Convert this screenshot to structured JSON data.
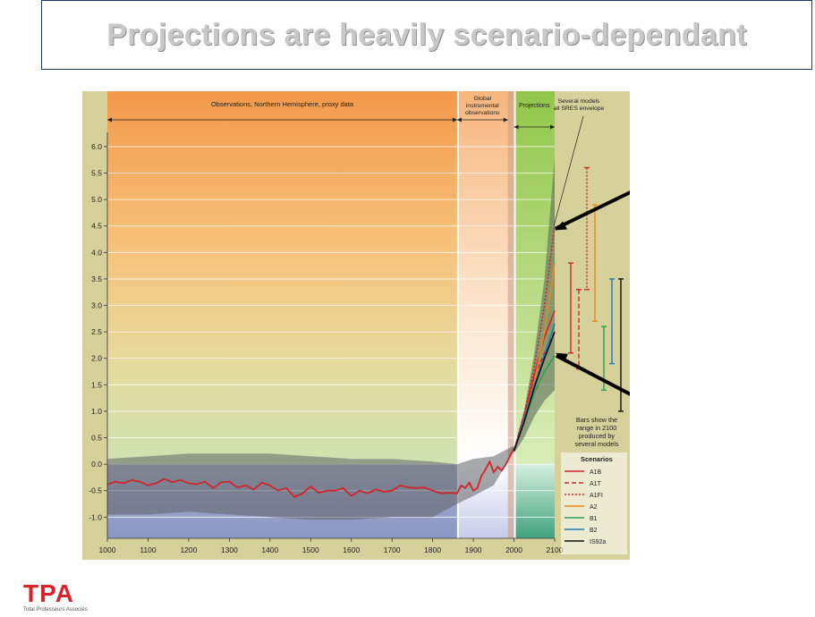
{
  "title": "Projections are heavily scenario-dependant",
  "logo": {
    "main": "TPA",
    "sub": "Total Professeurs Associés"
  },
  "chart_data": {
    "type": "line",
    "xlim": [
      1000,
      2100
    ],
    "ylim": [
      -1.0,
      6.0
    ],
    "x_ticks": [
      1000,
      1100,
      1200,
      1300,
      1400,
      1500,
      1600,
      1700,
      1800,
      1900,
      2000,
      2100
    ],
    "y_ticks": [
      -1.0,
      -0.5,
      0.0,
      0.5,
      1.0,
      1.5,
      2.0,
      2.5,
      3.0,
      3.5,
      4.0,
      4.5,
      5.0,
      5.5,
      6.0
    ],
    "periods": [
      {
        "label": "Observations, Northern Hemisphere, proxy data",
        "from": 1000,
        "to": 1860,
        "color": "#f39a4f"
      },
      {
        "label": "Global instrumental observations",
        "from": 1860,
        "to": 2000,
        "color": "#f8c9a0"
      },
      {
        "label": "Projections",
        "from": 2000,
        "to": 2100,
        "color": "#9ccc52"
      }
    ],
    "envelope_label": "Several models all SRES envelope",
    "bars_note": "Bars show the range in 2100 produced by several models",
    "legend_title": "Scenarios",
    "observations": {
      "x": [
        1000,
        1020,
        1040,
        1060,
        1080,
        1100,
        1120,
        1140,
        1160,
        1180,
        1200,
        1220,
        1240,
        1260,
        1280,
        1300,
        1320,
        1340,
        1360,
        1380,
        1400,
        1420,
        1440,
        1460,
        1480,
        1500,
        1520,
        1540,
        1560,
        1580,
        1600,
        1620,
        1640,
        1660,
        1680,
        1700,
        1720,
        1740,
        1760,
        1780,
        1800,
        1820,
        1840,
        1860,
        1870,
        1880,
        1890,
        1900,
        1910,
        1920,
        1930,
        1940,
        1950,
        1960,
        1970,
        1980,
        1990,
        2000
      ],
      "y": [
        -0.38,
        -0.33,
        -0.36,
        -0.3,
        -0.33,
        -0.4,
        -0.36,
        -0.28,
        -0.34,
        -0.3,
        -0.36,
        -0.38,
        -0.33,
        -0.45,
        -0.34,
        -0.33,
        -0.44,
        -0.4,
        -0.48,
        -0.35,
        -0.4,
        -0.5,
        -0.45,
        -0.62,
        -0.55,
        -0.42,
        -0.54,
        -0.5,
        -0.5,
        -0.45,
        -0.6,
        -0.5,
        -0.55,
        -0.48,
        -0.52,
        -0.5,
        -0.4,
        -0.44,
        -0.45,
        -0.44,
        -0.5,
        -0.55,
        -0.54,
        -0.55,
        -0.4,
        -0.45,
        -0.35,
        -0.5,
        -0.45,
        -0.22,
        -0.1,
        0.05,
        -0.15,
        -0.05,
        -0.12,
        0.0,
        0.15,
        0.3
      ]
    },
    "uncertainty": {
      "x": [
        1000,
        1100,
        1200,
        1300,
        1400,
        1500,
        1600,
        1700,
        1800,
        1860,
        1900,
        1950,
        2000
      ],
      "upper": [
        0.1,
        0.15,
        0.2,
        0.2,
        0.2,
        0.15,
        0.1,
        0.1,
        0.05,
        0.0,
        0.1,
        0.15,
        0.35
      ],
      "lower": [
        -0.95,
        -0.95,
        -0.9,
        -0.95,
        -1.0,
        -1.05,
        -1.05,
        -1.0,
        -1.0,
        -0.75,
        -0.6,
        -0.4,
        0.25
      ]
    },
    "projection_envelope": {
      "x": [
        2000,
        2025,
        2050,
        2075,
        2100
      ],
      "upper": [
        0.3,
        1.0,
        2.1,
        3.5,
        5.8
      ],
      "lower": [
        0.2,
        0.5,
        0.9,
        1.2,
        1.4
      ]
    },
    "scenarios": [
      {
        "name": "A1B",
        "color": "#d0242a",
        "dash": "solid",
        "x": [
          2000,
          2025,
          2050,
          2075,
          2100
        ],
        "y": [
          0.25,
          0.9,
          1.7,
          2.4,
          2.9
        ],
        "range": [
          2.1,
          3.8
        ]
      },
      {
        "name": "A1T",
        "color": "#d0242a",
        "dash": "dashed",
        "x": [
          2000,
          2025,
          2050,
          2075,
          2100
        ],
        "y": [
          0.25,
          0.95,
          1.65,
          2.1,
          2.5
        ],
        "range": [
          1.8,
          3.3
        ]
      },
      {
        "name": "A1FI",
        "color": "#d0242a",
        "dash": "dotted",
        "x": [
          2000,
          2025,
          2050,
          2075,
          2100
        ],
        "y": [
          0.25,
          0.95,
          1.85,
          3.0,
          4.5
        ],
        "range": [
          3.3,
          5.6
        ]
      },
      {
        "name": "A2",
        "color": "#e8891c",
        "dash": "solid",
        "x": [
          2000,
          2025,
          2050,
          2075,
          2100
        ],
        "y": [
          0.25,
          0.85,
          1.55,
          2.5,
          3.8
        ],
        "range": [
          2.7,
          4.9
        ]
      },
      {
        "name": "B1",
        "color": "#2e9e4e",
        "dash": "solid",
        "x": [
          2000,
          2025,
          2050,
          2075,
          2100
        ],
        "y": [
          0.25,
          0.8,
          1.35,
          1.75,
          2.05
        ],
        "range": [
          1.4,
          2.6
        ]
      },
      {
        "name": "B2",
        "color": "#1e7bb5",
        "dash": "solid",
        "x": [
          2000,
          2025,
          2050,
          2075,
          2100
        ],
        "y": [
          0.25,
          0.85,
          1.5,
          2.05,
          2.65
        ],
        "range": [
          1.9,
          3.5
        ]
      },
      {
        "name": "IS92a",
        "color": "#111111",
        "dash": "solid",
        "x": [
          2000,
          2025,
          2050,
          2075,
          2100
        ],
        "y": [
          0.25,
          0.8,
          1.45,
          2.0,
          2.5
        ],
        "range": [
          1.0,
          3.5
        ]
      }
    ]
  }
}
